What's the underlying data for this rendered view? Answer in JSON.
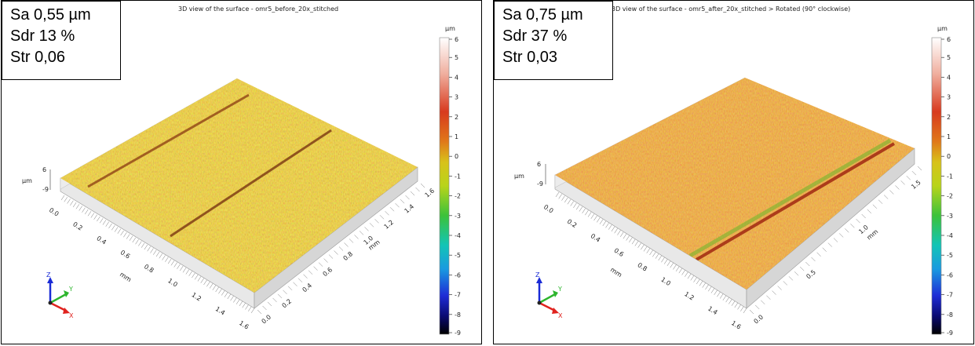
{
  "panels": [
    {
      "title": "3D view of the surface - omr5_before_20x_stitched",
      "params": [
        "Sa 0,55 µm",
        "Sdr 13 %",
        "Str 0,06"
      ],
      "unit": "µm",
      "colorbar_ticks": [
        "6",
        "5",
        "4",
        "3",
        "2",
        "1",
        "0",
        "-1",
        "-2",
        "-3",
        "-4",
        "-5",
        "-6",
        "-7",
        "-8",
        "-9"
      ],
      "z_ticks": [
        "6",
        "-9"
      ],
      "z_unit": "µm",
      "x_ticks": [
        "0.0",
        "0.2",
        "0.4",
        "0.6",
        "0.8",
        "1.0",
        "1.2",
        "1.4",
        "1.6"
      ],
      "x_label": "mm",
      "y_ticks": [
        "0.0",
        "0.2",
        "0.4",
        "0.6",
        "0.8",
        "1.0",
        "1.2",
        "1.4",
        "1.6"
      ],
      "y_label": "mm",
      "triad": [
        "Z",
        "Y",
        "X"
      ]
    },
    {
      "title": "3D view of the surface - omr5_after_20x_stitched > Rotated (90° clockwise)",
      "params": [
        "Sa 0,75 µm",
        "Sdr 37 %",
        "Str 0,03"
      ],
      "unit": "µm",
      "colorbar_ticks": [
        "6",
        "5",
        "4",
        "3",
        "2",
        "1",
        "0",
        "-1",
        "-2",
        "-3",
        "-4",
        "-5",
        "-6",
        "-7",
        "-8",
        "-9"
      ],
      "z_ticks": [
        "6",
        "-9"
      ],
      "z_unit": "µm",
      "x_ticks": [
        "0.0",
        "0.2",
        "0.4",
        "0.6",
        "0.8",
        "1.0",
        "1.2",
        "1.4",
        "1.6"
      ],
      "x_label": "mm",
      "y_ticks": [
        "0.0",
        "0.5",
        "1.0",
        "1.5"
      ],
      "y_label": "mm",
      "triad": [
        "Z",
        "Y",
        "X"
      ]
    }
  ],
  "colors": {
    "surface_base": "#b39a1f",
    "surface_red": "#c4441b",
    "surface_green": "#7db531",
    "triad_z": "#1a2bd6",
    "triad_y": "#2db52d",
    "triad_x": "#e0231f"
  }
}
